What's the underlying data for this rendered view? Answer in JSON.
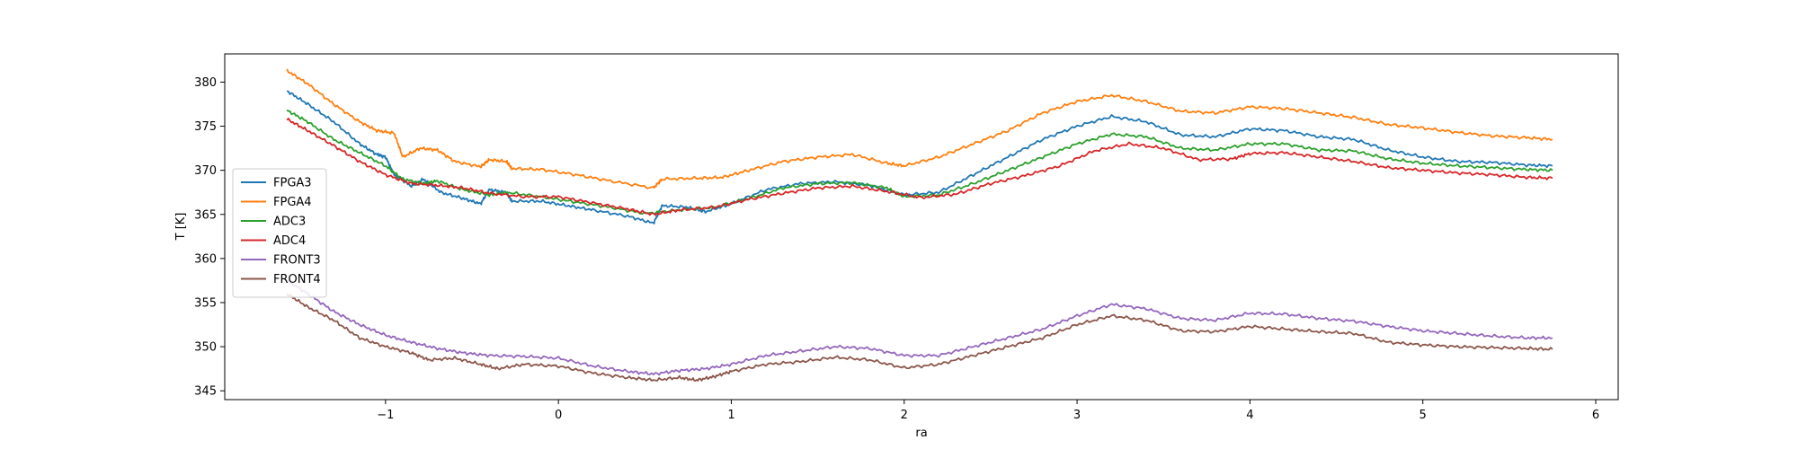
{
  "chart_data": {
    "type": "line",
    "title": "",
    "xlabel": "ra",
    "ylabel": "T [K]",
    "xlim": [
      -1.93,
      6.13
    ],
    "ylim": [
      344.0,
      383.2
    ],
    "xticks": [
      -1,
      0,
      1,
      2,
      3,
      4,
      5,
      6
    ],
    "xtick_labels": [
      "−1",
      "0",
      "1",
      "2",
      "3",
      "4",
      "5",
      "6"
    ],
    "yticks": [
      345,
      350,
      355,
      360,
      365,
      370,
      375,
      380
    ],
    "ytick_labels": [
      "345",
      "350",
      "355",
      "360",
      "365",
      "370",
      "375",
      "380"
    ],
    "grid": false,
    "legend_position": "center-left",
    "series": [
      {
        "name": "FPGA3",
        "color": "#1f77b4",
        "points": [
          [
            -1.57,
            379.0
          ],
          [
            -1.45,
            377.5
          ],
          [
            -1.3,
            375.5
          ],
          [
            -1.15,
            373.0
          ],
          [
            -1.05,
            371.8
          ],
          [
            -1.0,
            371.5
          ],
          [
            -0.95,
            369.5
          ],
          [
            -0.85,
            368.2
          ],
          [
            -0.78,
            369.0
          ],
          [
            -0.68,
            367.5
          ],
          [
            -0.55,
            366.8
          ],
          [
            -0.45,
            366.2
          ],
          [
            -0.4,
            367.8
          ],
          [
            -0.3,
            367.5
          ],
          [
            -0.27,
            366.5
          ],
          [
            -0.1,
            366.5
          ],
          [
            0.05,
            366.0
          ],
          [
            0.2,
            365.5
          ],
          [
            0.4,
            364.8
          ],
          [
            0.55,
            364.0
          ],
          [
            0.6,
            366.0
          ],
          [
            0.75,
            365.8
          ],
          [
            0.85,
            365.3
          ],
          [
            1.0,
            366.2
          ],
          [
            1.2,
            367.8
          ],
          [
            1.4,
            368.5
          ],
          [
            1.6,
            368.7
          ],
          [
            1.8,
            368.3
          ],
          [
            2.0,
            367.2
          ],
          [
            2.2,
            367.5
          ],
          [
            2.4,
            369.5
          ],
          [
            2.6,
            371.5
          ],
          [
            2.8,
            373.5
          ],
          [
            3.0,
            375.0
          ],
          [
            3.2,
            376.1
          ],
          [
            3.4,
            375.5
          ],
          [
            3.6,
            374.0
          ],
          [
            3.8,
            373.8
          ],
          [
            4.0,
            374.7
          ],
          [
            4.2,
            374.5
          ],
          [
            4.4,
            373.8
          ],
          [
            4.6,
            373.5
          ],
          [
            4.8,
            372.3
          ],
          [
            5.0,
            371.5
          ],
          [
            5.2,
            371.0
          ],
          [
            5.4,
            370.9
          ],
          [
            5.6,
            370.6
          ],
          [
            5.75,
            370.5
          ]
        ]
      },
      {
        "name": "FPGA4",
        "color": "#ff7f0e",
        "points": [
          [
            -1.57,
            381.3
          ],
          [
            -1.45,
            379.8
          ],
          [
            -1.3,
            377.5
          ],
          [
            -1.15,
            375.5
          ],
          [
            -1.05,
            374.5
          ],
          [
            -0.95,
            374.2
          ],
          [
            -0.9,
            371.5
          ],
          [
            -0.8,
            372.5
          ],
          [
            -0.7,
            372.3
          ],
          [
            -0.6,
            371.0
          ],
          [
            -0.45,
            370.4
          ],
          [
            -0.4,
            371.2
          ],
          [
            -0.3,
            371.0
          ],
          [
            -0.27,
            370.2
          ],
          [
            -0.1,
            370.1
          ],
          [
            0.1,
            369.5
          ],
          [
            0.3,
            368.8
          ],
          [
            0.55,
            368.0
          ],
          [
            0.6,
            369.0
          ],
          [
            0.8,
            369.1
          ],
          [
            0.95,
            369.2
          ],
          [
            1.1,
            370.0
          ],
          [
            1.3,
            371.0
          ],
          [
            1.5,
            371.5
          ],
          [
            1.7,
            371.8
          ],
          [
            1.9,
            370.8
          ],
          [
            2.0,
            370.5
          ],
          [
            2.2,
            371.5
          ],
          [
            2.4,
            373.0
          ],
          [
            2.6,
            374.5
          ],
          [
            2.8,
            376.5
          ],
          [
            3.0,
            377.8
          ],
          [
            3.2,
            378.5
          ],
          [
            3.4,
            377.8
          ],
          [
            3.6,
            376.7
          ],
          [
            3.8,
            376.5
          ],
          [
            4.0,
            377.2
          ],
          [
            4.2,
            377.0
          ],
          [
            4.4,
            376.5
          ],
          [
            4.6,
            376.0
          ],
          [
            4.8,
            375.2
          ],
          [
            5.0,
            374.8
          ],
          [
            5.2,
            374.3
          ],
          [
            5.4,
            373.9
          ],
          [
            5.6,
            373.7
          ],
          [
            5.75,
            373.5
          ]
        ]
      },
      {
        "name": "ADC3",
        "color": "#2ca02c",
        "points": [
          [
            -1.57,
            376.8
          ],
          [
            -1.45,
            375.5
          ],
          [
            -1.3,
            373.5
          ],
          [
            -1.15,
            372.0
          ],
          [
            -1.0,
            370.5
          ],
          [
            -0.9,
            369.0
          ],
          [
            -0.78,
            368.5
          ],
          [
            -0.7,
            368.8
          ],
          [
            -0.55,
            367.8
          ],
          [
            -0.4,
            367.2
          ],
          [
            -0.3,
            367.5
          ],
          [
            -0.1,
            367.0
          ],
          [
            0.1,
            366.4
          ],
          [
            0.3,
            365.8
          ],
          [
            0.5,
            365.1
          ],
          [
            0.7,
            365.5
          ],
          [
            0.9,
            365.8
          ],
          [
            1.1,
            366.8
          ],
          [
            1.3,
            368.0
          ],
          [
            1.5,
            368.5
          ],
          [
            1.7,
            368.6
          ],
          [
            1.9,
            368.0
          ],
          [
            2.0,
            367.0
          ],
          [
            2.2,
            367.2
          ],
          [
            2.4,
            368.5
          ],
          [
            2.6,
            370.0
          ],
          [
            2.8,
            371.5
          ],
          [
            3.0,
            373.0
          ],
          [
            3.2,
            374.1
          ],
          [
            3.4,
            373.8
          ],
          [
            3.6,
            372.5
          ],
          [
            3.8,
            372.3
          ],
          [
            4.0,
            373.0
          ],
          [
            4.2,
            373.0
          ],
          [
            4.4,
            372.3
          ],
          [
            4.6,
            372.2
          ],
          [
            4.8,
            371.3
          ],
          [
            5.0,
            370.8
          ],
          [
            5.2,
            370.5
          ],
          [
            5.4,
            370.3
          ],
          [
            5.6,
            370.1
          ],
          [
            5.75,
            370.0
          ]
        ]
      },
      {
        "name": "ADC4",
        "color": "#d62728",
        "points": [
          [
            -1.57,
            375.8
          ],
          [
            -1.45,
            374.5
          ],
          [
            -1.3,
            372.8
          ],
          [
            -1.15,
            371.0
          ],
          [
            -1.0,
            369.5
          ],
          [
            -0.85,
            368.5
          ],
          [
            -0.7,
            368.3
          ],
          [
            -0.55,
            368.0
          ],
          [
            -0.4,
            367.4
          ],
          [
            -0.2,
            367.0
          ],
          [
            0.0,
            367.0
          ],
          [
            0.2,
            366.3
          ],
          [
            0.4,
            365.6
          ],
          [
            0.55,
            365.0
          ],
          [
            0.7,
            365.5
          ],
          [
            0.9,
            365.8
          ],
          [
            1.1,
            366.7
          ],
          [
            1.3,
            367.4
          ],
          [
            1.5,
            368.0
          ],
          [
            1.7,
            368.2
          ],
          [
            1.9,
            367.6
          ],
          [
            2.1,
            366.9
          ],
          [
            2.3,
            367.3
          ],
          [
            2.5,
            368.5
          ],
          [
            2.7,
            369.4
          ],
          [
            2.9,
            370.5
          ],
          [
            3.1,
            372.2
          ],
          [
            3.3,
            373.0
          ],
          [
            3.5,
            372.5
          ],
          [
            3.7,
            371.2
          ],
          [
            3.9,
            371.3
          ],
          [
            4.0,
            371.9
          ],
          [
            4.2,
            372.0
          ],
          [
            4.4,
            371.5
          ],
          [
            4.6,
            371.0
          ],
          [
            4.8,
            370.3
          ],
          [
            5.0,
            370.0
          ],
          [
            5.2,
            369.7
          ],
          [
            5.4,
            369.5
          ],
          [
            5.6,
            369.2
          ],
          [
            5.75,
            369.1
          ]
        ]
      },
      {
        "name": "FRONT3",
        "color": "#9467bd",
        "points": [
          [
            -1.57,
            357.5
          ],
          [
            -1.45,
            356.0
          ],
          [
            -1.3,
            354.0
          ],
          [
            -1.15,
            352.5
          ],
          [
            -1.0,
            351.3
          ],
          [
            -0.85,
            350.5
          ],
          [
            -0.7,
            349.8
          ],
          [
            -0.55,
            349.3
          ],
          [
            -0.4,
            349.0
          ],
          [
            -0.2,
            348.9
          ],
          [
            0.0,
            348.7
          ],
          [
            0.2,
            347.8
          ],
          [
            0.4,
            347.2
          ],
          [
            0.55,
            346.9
          ],
          [
            0.7,
            347.3
          ],
          [
            0.85,
            347.5
          ],
          [
            1.0,
            348.0
          ],
          [
            1.2,
            349.0
          ],
          [
            1.4,
            349.5
          ],
          [
            1.6,
            350.0
          ],
          [
            1.8,
            349.8
          ],
          [
            2.0,
            349.0
          ],
          [
            2.2,
            349.0
          ],
          [
            2.4,
            350.0
          ],
          [
            2.6,
            351.0
          ],
          [
            2.8,
            352.0
          ],
          [
            3.0,
            353.5
          ],
          [
            3.2,
            354.8
          ],
          [
            3.4,
            354.3
          ],
          [
            3.6,
            353.2
          ],
          [
            3.8,
            353.0
          ],
          [
            4.0,
            353.8
          ],
          [
            4.2,
            353.7
          ],
          [
            4.4,
            353.2
          ],
          [
            4.6,
            352.9
          ],
          [
            4.8,
            352.3
          ],
          [
            5.0,
            351.8
          ],
          [
            5.2,
            351.5
          ],
          [
            5.4,
            351.2
          ],
          [
            5.6,
            351.0
          ],
          [
            5.75,
            351.0
          ]
        ]
      },
      {
        "name": "FRONT4",
        "color": "#8c564b",
        "points": [
          [
            -1.57,
            356.0
          ],
          [
            -1.45,
            354.5
          ],
          [
            -1.3,
            353.0
          ],
          [
            -1.15,
            351.0
          ],
          [
            -1.0,
            350.0
          ],
          [
            -0.85,
            349.3
          ],
          [
            -0.75,
            348.5
          ],
          [
            -0.6,
            348.7
          ],
          [
            -0.45,
            348.0
          ],
          [
            -0.35,
            347.5
          ],
          [
            -0.2,
            348.0
          ],
          [
            0.0,
            347.8
          ],
          [
            0.2,
            347.0
          ],
          [
            0.4,
            346.5
          ],
          [
            0.55,
            346.2
          ],
          [
            0.7,
            346.5
          ],
          [
            0.8,
            346.2
          ],
          [
            0.9,
            346.6
          ],
          [
            1.0,
            347.2
          ],
          [
            1.2,
            348.0
          ],
          [
            1.4,
            348.3
          ],
          [
            1.6,
            348.8
          ],
          [
            1.8,
            348.5
          ],
          [
            2.0,
            347.6
          ],
          [
            2.2,
            348.0
          ],
          [
            2.4,
            349.0
          ],
          [
            2.6,
            350.0
          ],
          [
            2.8,
            351.0
          ],
          [
            3.0,
            352.5
          ],
          [
            3.2,
            353.5
          ],
          [
            3.4,
            353.0
          ],
          [
            3.6,
            351.8
          ],
          [
            3.8,
            351.7
          ],
          [
            4.0,
            352.3
          ],
          [
            4.2,
            352.0
          ],
          [
            4.4,
            351.7
          ],
          [
            4.6,
            351.5
          ],
          [
            4.8,
            350.5
          ],
          [
            5.0,
            350.2
          ],
          [
            5.2,
            350.0
          ],
          [
            5.4,
            349.9
          ],
          [
            5.6,
            349.8
          ],
          [
            5.75,
            349.7
          ]
        ]
      }
    ]
  }
}
